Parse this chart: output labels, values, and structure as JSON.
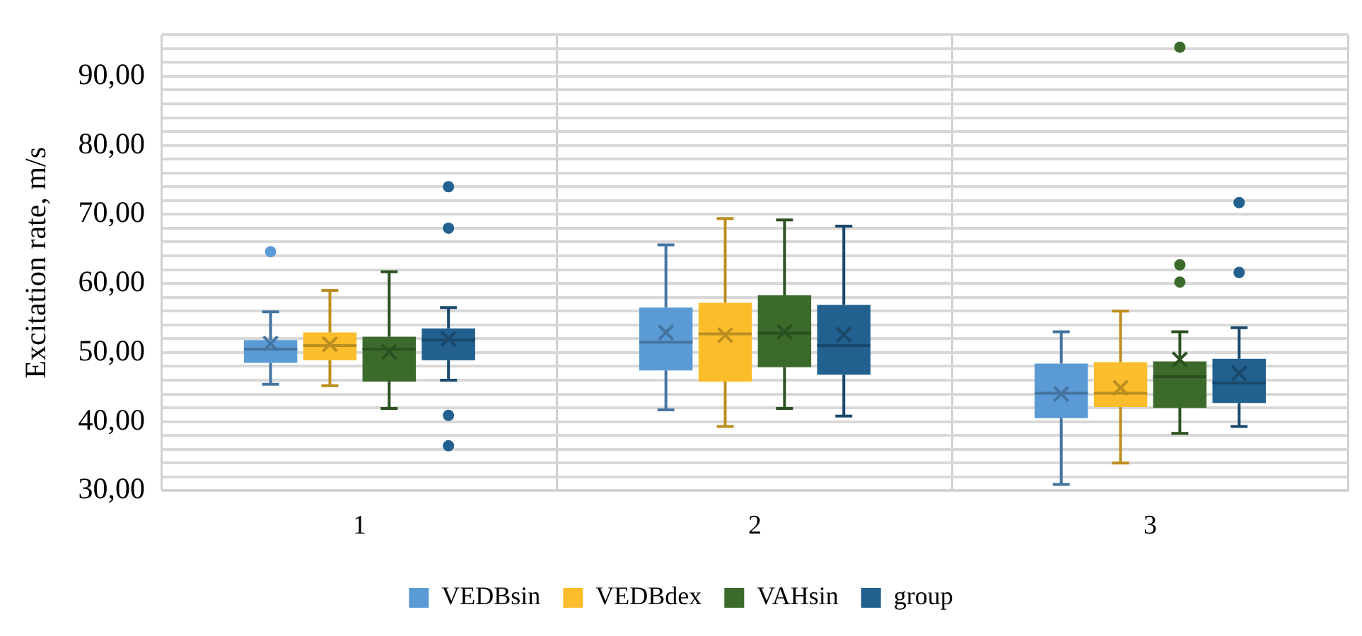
{
  "chart_data": {
    "type": "box",
    "ylabel": "Excitation rate, m/s",
    "categories": [
      "1",
      "2",
      "3"
    ],
    "ylim": [
      30,
      96
    ],
    "yticks": [
      {
        "value": 30,
        "label": "30,00"
      },
      {
        "value": 32,
        "label": null
      },
      {
        "value": 34,
        "label": null
      },
      {
        "value": 36,
        "label": null
      },
      {
        "value": 38,
        "label": null
      },
      {
        "value": 40,
        "label": "40,00"
      },
      {
        "value": 42,
        "label": null
      },
      {
        "value": 44,
        "label": null
      },
      {
        "value": 46,
        "label": null
      },
      {
        "value": 48,
        "label": null
      },
      {
        "value": 50,
        "label": "50,00"
      },
      {
        "value": 52,
        "label": null
      },
      {
        "value": 54,
        "label": null
      },
      {
        "value": 56,
        "label": null
      },
      {
        "value": 58,
        "label": null
      },
      {
        "value": 60,
        "label": "60,00"
      },
      {
        "value": 62,
        "label": null
      },
      {
        "value": 64,
        "label": null
      },
      {
        "value": 66,
        "label": null
      },
      {
        "value": 68,
        "label": null
      },
      {
        "value": 70,
        "label": "70,00"
      },
      {
        "value": 72,
        "label": null
      },
      {
        "value": 74,
        "label": null
      },
      {
        "value": 76,
        "label": null
      },
      {
        "value": 78,
        "label": null
      },
      {
        "value": 80,
        "label": "80,00"
      },
      {
        "value": 82,
        "label": null
      },
      {
        "value": 84,
        "label": null
      },
      {
        "value": 86,
        "label": null
      },
      {
        "value": 88,
        "label": null
      },
      {
        "value": 90,
        "label": "90,00"
      },
      {
        "value": 92,
        "label": null
      },
      {
        "value": 94,
        "label": null
      },
      {
        "value": 96,
        "label": null
      }
    ],
    "grid": true,
    "legend": "bottom",
    "series": [
      {
        "name": "VEDBsin",
        "color": "#5b9bd5",
        "boxes": [
          {
            "low": 45.4,
            "q1": 48.5,
            "median": 50.5,
            "q3": 51.8,
            "high": 55.9,
            "mean": 51.3,
            "outliers": [
              64.6
            ]
          },
          {
            "low": 41.7,
            "q1": 47.4,
            "median": 51.5,
            "q3": 56.5,
            "high": 65.6,
            "mean": 52.9
          },
          {
            "low": 30.9,
            "q1": 40.5,
            "median": 44.1,
            "q3": 48.4,
            "high": 53.0,
            "mean": 44.0
          }
        ]
      },
      {
        "name": "VEDBdex",
        "color": "#fbbd2b",
        "boxes": [
          {
            "low": 45.2,
            "q1": 48.9,
            "median": 51.0,
            "q3": 52.9,
            "high": 59.0,
            "mean": 51.2
          },
          {
            "low": 39.3,
            "q1": 45.8,
            "median": 52.7,
            "q3": 57.2,
            "high": 69.4,
            "mean": 52.5
          },
          {
            "low": 34.0,
            "q1": 42.1,
            "median": 44.1,
            "q3": 48.6,
            "high": 56.0,
            "mean": 44.9
          }
        ]
      },
      {
        "name": "VAHsin",
        "color": "#3b6a2b",
        "boxes": [
          {
            "low": 41.9,
            "q1": 45.8,
            "median": 50.5,
            "q3": 52.3,
            "high": 61.7,
            "mean": 50.1
          },
          {
            "low": 41.9,
            "q1": 47.9,
            "median": 52.8,
            "q3": 58.3,
            "high": 69.2,
            "mean": 53.0
          },
          {
            "low": 38.3,
            "q1": 42.0,
            "median": 46.5,
            "q3": 48.7,
            "high": 53.0,
            "mean": 49.0,
            "outliers": [
              94.2,
              62.7,
              60.2
            ]
          }
        ]
      },
      {
        "name": "group",
        "color": "#21608f",
        "boxes": [
          {
            "low": 46.0,
            "q1": 48.9,
            "median": 51.8,
            "q3": 53.5,
            "high": 56.5,
            "mean": 52.0,
            "outliers": [
              74.0,
              68.0,
              40.9,
              36.5
            ]
          },
          {
            "low": 40.8,
            "q1": 46.8,
            "median": 51.0,
            "q3": 56.9,
            "high": 68.3,
            "mean": 52.6
          },
          {
            "low": 39.3,
            "q1": 42.7,
            "median": 45.6,
            "q3": 49.1,
            "high": 53.6,
            "mean": 47.0,
            "outliers": [
              71.7,
              61.6
            ]
          }
        ]
      }
    ]
  }
}
